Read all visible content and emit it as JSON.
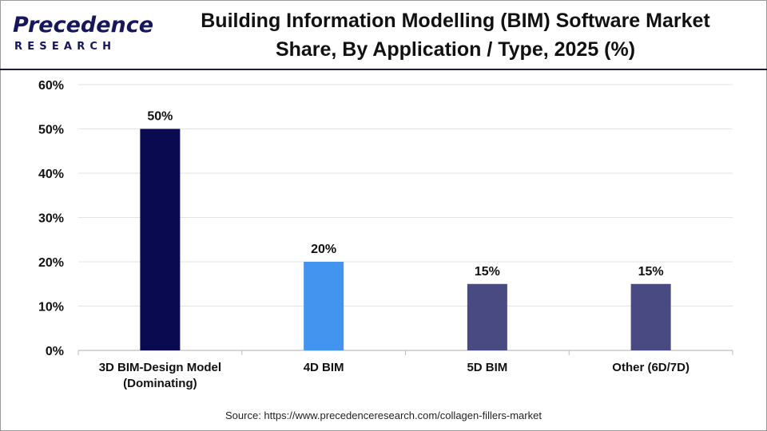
{
  "brand": {
    "name": "Precedence",
    "subtitle": "RESEARCH",
    "color": "#16165c"
  },
  "header": {
    "title_line1": "Building Information Modelling (BIM) Software Market",
    "title_line2": "Share, By Application / Type, 2025 (%)"
  },
  "source": "Source: https://www.precedenceresearch.com/collagen-fillers-market",
  "chart_data": {
    "type": "bar",
    "title": "Building Information Modelling (BIM) Software Market Share, By Application / Type, 2025 (%)",
    "categories": [
      "3D BIM-Design Model (Dominating)",
      "4D BIM",
      "5D BIM",
      "Other (6D/7D)"
    ],
    "category_lines": [
      [
        "3D BIM-Design Model",
        "(Dominating)"
      ],
      [
        "4D BIM"
      ],
      [
        "5D BIM"
      ],
      [
        "Other (6D/7D)"
      ]
    ],
    "values": [
      50,
      20,
      15,
      15
    ],
    "value_labels": [
      "50%",
      "20%",
      "15%",
      "15%"
    ],
    "colors": [
      "#0a0a50",
      "#4394ee",
      "#4a4a82",
      "#4a4a82"
    ],
    "xlabel": "",
    "ylabel": "",
    "ylim": [
      0,
      60
    ],
    "yticks": [
      0,
      10,
      20,
      30,
      40,
      50,
      60
    ],
    "ytick_labels": [
      "0%",
      "10%",
      "20%",
      "30%",
      "40%",
      "50%",
      "60%"
    ],
    "grid": true,
    "legend": "none"
  }
}
